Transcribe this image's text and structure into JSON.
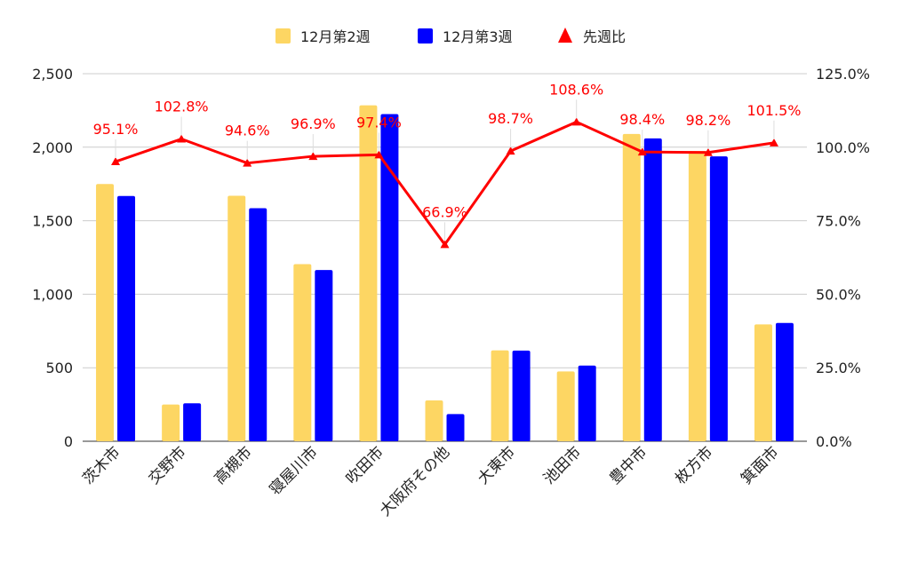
{
  "chart_data": {
    "type": "bar",
    "categories": [
      "茨木市",
      "交野市",
      "高槻市",
      "寝屋川市",
      "吹田市",
      "大阪府その他",
      "大東市",
      "池田市",
      "豊中市",
      "枚方市",
      "箕面市"
    ],
    "series": [
      {
        "name": "12月第2週",
        "type": "bar",
        "axis": "left",
        "color": "#fdd663",
        "values": [
          1750,
          250,
          1670,
          1205,
          2285,
          278,
          618,
          475,
          2090,
          1975,
          795
        ]
      },
      {
        "name": "12月第3週",
        "type": "bar",
        "axis": "left",
        "color": "#0000ff",
        "values": [
          1668,
          258,
          1585,
          1165,
          2225,
          185,
          617,
          515,
          2060,
          1938,
          805
        ]
      },
      {
        "name": "先週比",
        "type": "line",
        "axis": "right",
        "color": "#ff0000",
        "values": [
          95.1,
          102.8,
          94.6,
          96.9,
          97.4,
          66.9,
          98.7,
          108.6,
          98.4,
          98.2,
          101.5
        ],
        "labels": [
          "95.1%",
          "102.8%",
          "94.6%",
          "96.9%",
          "97.4%",
          "66.9%",
          "98.7%",
          "108.6%",
          "98.4%",
          "98.2%",
          "101.5%"
        ]
      }
    ],
    "y_left": {
      "ylim": [
        0,
        2500
      ],
      "ticks": [
        0,
        500,
        1000,
        1500,
        2000,
        2500
      ],
      "tick_labels": [
        "0",
        "500",
        "1,000",
        "1,500",
        "2,000",
        "2,500"
      ]
    },
    "y_right": {
      "ylim": [
        0,
        125
      ],
      "ticks": [
        0,
        25,
        50,
        75,
        100,
        125
      ],
      "tick_labels": [
        "0.0%",
        "25.0%",
        "50.0%",
        "75.0%",
        "100.0%",
        "125.0%"
      ]
    },
    "grid": true,
    "legend": {
      "position": "top-center"
    },
    "title": "",
    "xlabel": "",
    "ylabel": ""
  }
}
